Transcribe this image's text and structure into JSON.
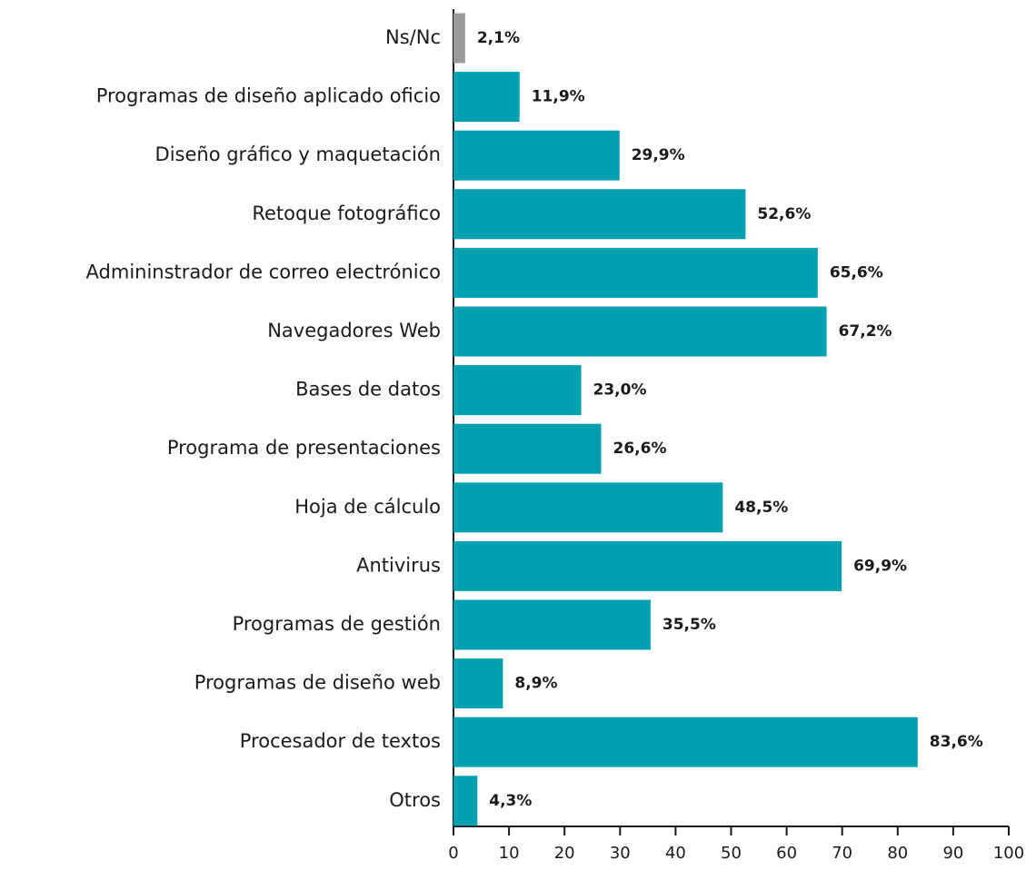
{
  "chart_data": {
    "type": "barh",
    "categories": [
      "Ns/Nc",
      "Programas de diseño aplicado oficio",
      "Diseño gráfico y maquetación",
      "Retoque fotográfico",
      "Admininstrador de correo electrónico",
      "Navegadores Web",
      "Bases de datos",
      "Programa de presentaciones",
      "Hoja de cálculo",
      "Antivirus",
      "Programas de gestión",
      "Programas de diseño web",
      "Procesador de textos",
      "Otros"
    ],
    "values": [
      2.1,
      11.9,
      29.9,
      52.6,
      65.6,
      67.2,
      23.0,
      26.6,
      48.5,
      69.9,
      35.5,
      8.9,
      83.6,
      4.3
    ],
    "value_labels": [
      "2,1%",
      "11,9%",
      "29,9%",
      "52,6%",
      "65,6%",
      "67,2%",
      "23,0%",
      "26,6%",
      "48,5%",
      "69,9%",
      "35,5%",
      "8,9%",
      "83,6%",
      "4,3%"
    ],
    "colors": [
      "#9a9a9a",
      "#00a0b0",
      "#00a0b0",
      "#00a0b0",
      "#00a0b0",
      "#00a0b0",
      "#00a0b0",
      "#00a0b0",
      "#00a0b0",
      "#00a0b0",
      "#00a0b0",
      "#00a0b0",
      "#00a0b0",
      "#00a0b0"
    ],
    "xlim": [
      0,
      100
    ],
    "xticks": [
      0,
      10,
      20,
      30,
      40,
      50,
      60,
      70,
      80,
      90,
      100
    ]
  }
}
